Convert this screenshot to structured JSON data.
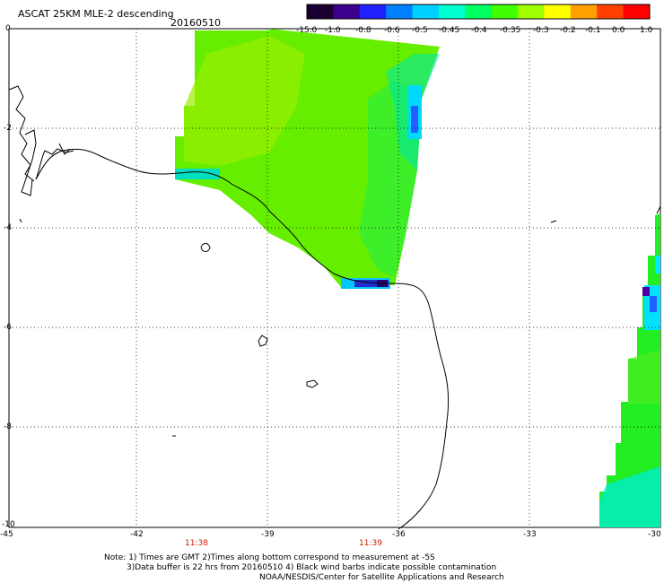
{
  "header": {
    "title": "ASCAT 25KM MLE-2 descending",
    "date": "20160510"
  },
  "colorbar": {
    "labels": [
      "-15.0",
      "-1.0",
      "-0.8",
      "-0.6",
      "-0.5",
      "-0.45",
      "-0.4",
      "-0.35",
      "-0.3",
      "-0.2",
      "-0.1",
      "0.0",
      "1.0"
    ],
    "colors": [
      "#1a0030",
      "#3c008c",
      "#2020ff",
      "#0080ff",
      "#00d0ff",
      "#00ffd0",
      "#00ff60",
      "#40ff00",
      "#a0ff00",
      "#ffff00",
      "#ffa000",
      "#ff4000",
      "#ff0000"
    ]
  },
  "axes": {
    "x_ticks": [
      "-45",
      "-42",
      "-39",
      "-36",
      "-33",
      "-30"
    ],
    "y_ticks": [
      "0",
      "-2",
      "-4",
      "-6",
      "-8",
      "-10"
    ]
  },
  "times": [
    "11:38",
    "11:39"
  ],
  "notes": [
    "Note: 1) Times are GMT 2)Times along bottom correspond to measurement at -5S",
    "3)Data buffer is 22 hrs from 20160510 4) Black wind barbs indicate possible contamination",
    "NOAA/NESDIS/Center for Satellite Applications and Research"
  ]
}
